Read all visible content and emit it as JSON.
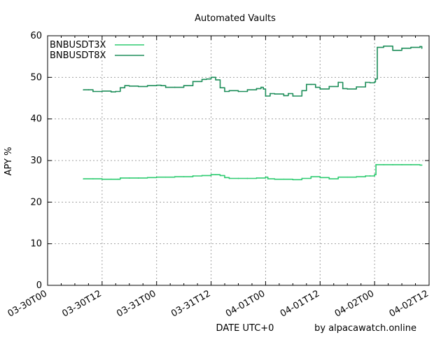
{
  "chart_data": {
    "type": "line",
    "title": "Automated Vaults",
    "xlabel": "DATE UTC+0",
    "ylabel": "APY %",
    "credit": "by alpacawatch.online",
    "x_unit": "hours since 03-30T00",
    "xlim": [
      0,
      84
    ],
    "ylim": [
      0,
      60
    ],
    "y_ticks": [
      0,
      10,
      20,
      30,
      40,
      50,
      60
    ],
    "x_ticks": [
      {
        "x": 0,
        "label": "03-30T00"
      },
      {
        "x": 12,
        "label": "03-30T12"
      },
      {
        "x": 24,
        "label": "03-31T00"
      },
      {
        "x": 36,
        "label": "03-31T12"
      },
      {
        "x": 48,
        "label": "04-01T00"
      },
      {
        "x": 60,
        "label": "04-01T12"
      },
      {
        "x": 72,
        "label": "04-02T00"
      },
      {
        "x": 84,
        "label": "04-02T12"
      }
    ],
    "grid": true,
    "legend_position": "top-left",
    "series": [
      {
        "name": "BNBUSDT3X",
        "color": "#2ecc71",
        "x": [
          7.9,
          10,
          12,
          14,
          15.5,
          16,
          18,
          20,
          22,
          24,
          26,
          28,
          30,
          32,
          34,
          36,
          37,
          38,
          39,
          40,
          42,
          44,
          46,
          48,
          48.5,
          50,
          52,
          54,
          56,
          58,
          60,
          62,
          64,
          66,
          68,
          70,
          71,
          72,
          72.3,
          74,
          76,
          78,
          80,
          82,
          82.4
        ],
        "y": [
          25.6,
          25.6,
          25.5,
          25.5,
          25.5,
          25.8,
          25.8,
          25.8,
          25.9,
          26.0,
          26.0,
          26.1,
          26.1,
          26.3,
          26.4,
          26.6,
          26.6,
          26.4,
          25.9,
          25.7,
          25.7,
          25.7,
          25.8,
          26.0,
          25.6,
          25.5,
          25.5,
          25.4,
          25.7,
          26.1,
          25.9,
          25.6,
          26.0,
          26.0,
          26.1,
          26.3,
          26.3,
          26.6,
          29.0,
          29.0,
          29.0,
          29.0,
          29.0,
          28.9,
          28.9
        ]
      },
      {
        "name": "BNBUSDT8X",
        "color": "#1e8e5a",
        "x": [
          7.9,
          9,
          10,
          12,
          14,
          15,
          16,
          17,
          18,
          20,
          22,
          24,
          25,
          26,
          28,
          30,
          32,
          34,
          35,
          36,
          37,
          38,
          39,
          40,
          42,
          44,
          46,
          47,
          47.5,
          48,
          49,
          50,
          52,
          53,
          54,
          56,
          57,
          58,
          59,
          60,
          62,
          64,
          65,
          66,
          68,
          70,
          71,
          72,
          72.2,
          72.6,
          74,
          76,
          78,
          80,
          82,
          82.4
        ],
        "y": [
          47.0,
          47.0,
          46.6,
          46.7,
          46.5,
          46.6,
          47.5,
          48.0,
          47.9,
          47.8,
          48.0,
          48.1,
          48.0,
          47.6,
          47.6,
          48.0,
          49.0,
          49.5,
          49.6,
          50.0,
          49.4,
          47.5,
          46.6,
          46.8,
          46.6,
          47.0,
          47.3,
          47.6,
          47.2,
          45.5,
          46.1,
          46.0,
          45.6,
          46.1,
          45.5,
          46.8,
          48.3,
          48.3,
          47.6,
          47.2,
          47.8,
          48.8,
          47.3,
          47.2,
          47.7,
          48.8,
          48.7,
          48.9,
          49.6,
          57.2,
          57.5,
          56.5,
          57.0,
          57.2,
          57.4,
          57.0
        ]
      }
    ]
  }
}
